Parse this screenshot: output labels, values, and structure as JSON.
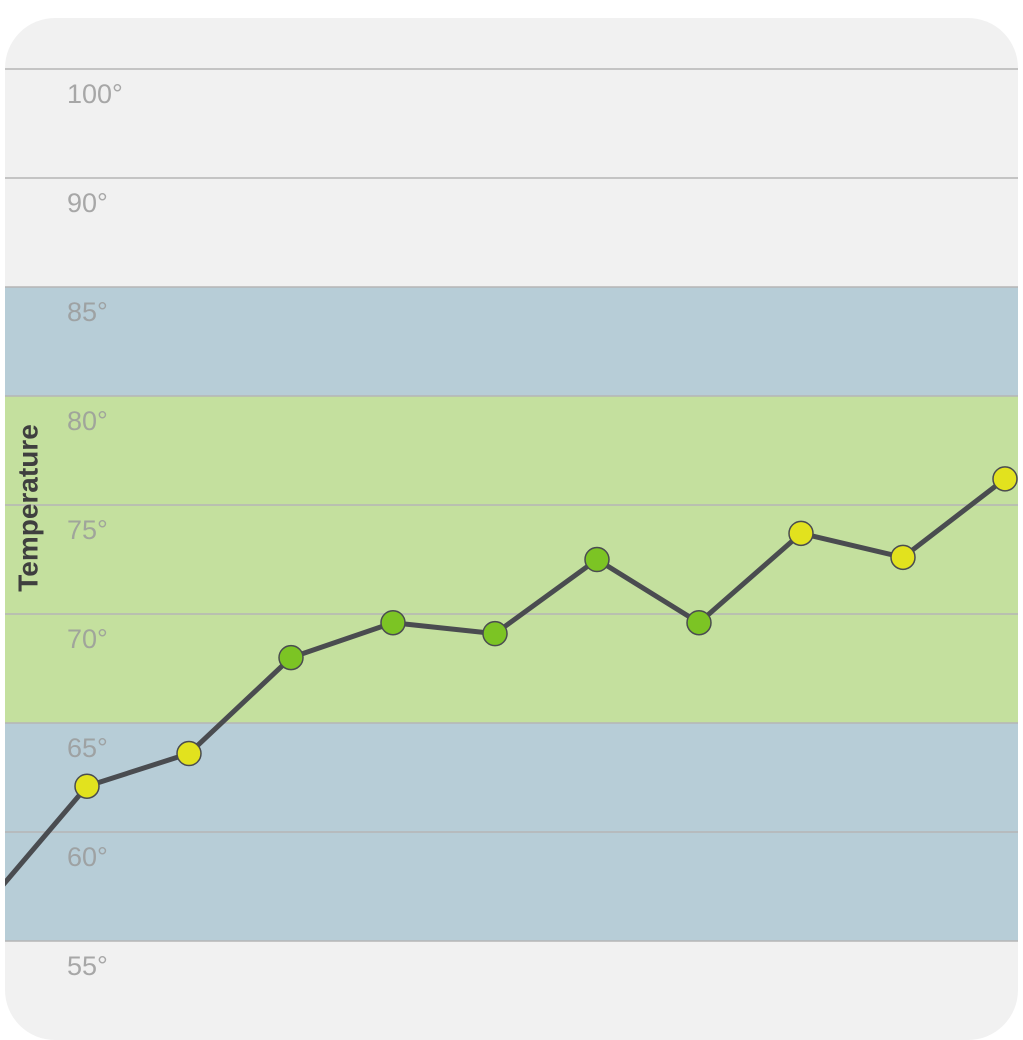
{
  "chart_data": {
    "type": "line",
    "y_label": "Temperature",
    "categories": [
      null,
      null,
      null,
      null,
      null,
      null,
      null,
      null,
      null,
      null,
      null
    ],
    "series": [
      {
        "color": "#4a4c50",
        "values": [
          56.6,
          62.1,
          63.6,
          68.0,
          69.6,
          69.1,
          72.5,
          69.6,
          73.7,
          72.6,
          76.2
        ],
        "point_colors": [
          "#e2e21e",
          "#e2e21e",
          "#e2e21e",
          "#7cc424",
          "#7cc424",
          "#7cc424",
          "#7cc424",
          "#7cc424",
          "#e2e21e",
          "#e2e21e",
          "#e2e21e"
        ]
      }
    ],
    "ylim": [
      55,
      100
    ],
    "yticks": [
      {
        "value": 100,
        "label": "100°"
      },
      {
        "value": 90,
        "label": "90°"
      },
      {
        "value": 85,
        "label": "85°"
      },
      {
        "value": 80,
        "label": "80°"
      },
      {
        "value": 75,
        "label": "75°"
      },
      {
        "value": 70,
        "label": "70°"
      },
      {
        "value": 65,
        "label": "65°"
      },
      {
        "value": 60,
        "label": "60°"
      },
      {
        "value": 55,
        "label": "55°"
      }
    ],
    "bands": [
      {
        "from": 80,
        "to": 85,
        "color": "#b7cdd7"
      },
      {
        "from": 65,
        "to": 80,
        "color": "#c4e09e"
      },
      {
        "from": 55,
        "to": 65,
        "color": "#b7cdd7"
      }
    ],
    "grid": true
  }
}
